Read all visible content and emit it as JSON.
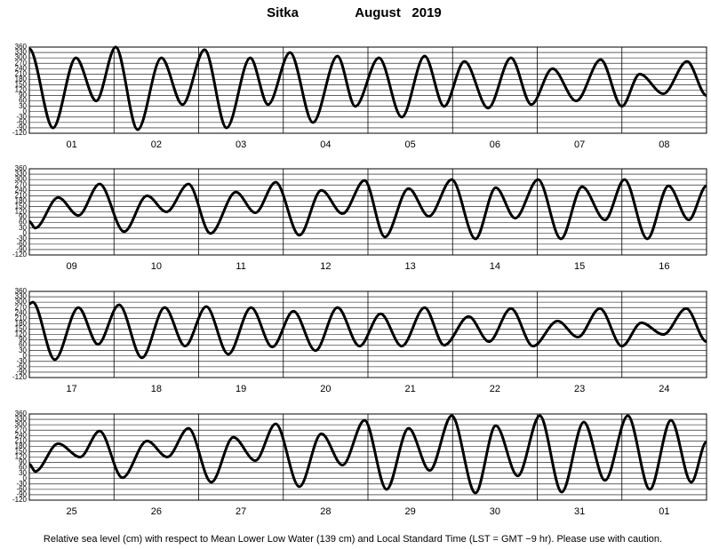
{
  "title": "Sitka",
  "date": "August   2019",
  "caption": "Relative sea level (cm) with respect to Mean Lower Low Water (139 cm) and Local Standard Time (LST = GMT −9 hr). Please use with caution.",
  "chart_data": [
    {
      "type": "line",
      "xlim": [
        0,
        8
      ],
      "ylim": [
        -120,
        360
      ],
      "grid": true,
      "color": "#000000",
      "yticks": [
        -120,
        -90,
        -60,
        -30,
        0,
        30,
        60,
        90,
        120,
        150,
        180,
        210,
        240,
        270,
        300,
        330,
        360
      ],
      "xticks": [
        {
          "value": 0.5,
          "label": "01"
        },
        {
          "value": 1.5,
          "label": "02"
        },
        {
          "value": 2.5,
          "label": "03"
        },
        {
          "value": 3.5,
          "label": "04"
        },
        {
          "value": 4.5,
          "label": "05"
        },
        {
          "value": 5.5,
          "label": "06"
        },
        {
          "value": 6.5,
          "label": "07"
        },
        {
          "value": 7.5,
          "label": "08"
        }
      ],
      "x": [
        0,
        0.28,
        0.55,
        0.79,
        1.02,
        1.28,
        1.56,
        1.81,
        2.07,
        2.33,
        2.61,
        2.82,
        3.08,
        3.35,
        3.64,
        3.85,
        4.13,
        4.4,
        4.67,
        4.9,
        5.14,
        5.42,
        5.69,
        5.93,
        6.18,
        6.46,
        6.75,
        7.0,
        7.21,
        7.49,
        7.77,
        8.0
      ],
      "values": [
        350,
        -90,
        300,
        60,
        360,
        -100,
        300,
        40,
        345,
        -90,
        300,
        40,
        330,
        -60,
        310,
        30,
        300,
        -30,
        310,
        30,
        280,
        20,
        300,
        40,
        240,
        60,
        290,
        30,
        210,
        100,
        280,
        90
      ]
    },
    {
      "type": "line",
      "xlim": [
        0,
        8
      ],
      "ylim": [
        -120,
        360
      ],
      "grid": true,
      "color": "#000000",
      "yticks": [
        -120,
        -90,
        -60,
        -30,
        0,
        30,
        60,
        90,
        120,
        150,
        180,
        210,
        240,
        270,
        300,
        330,
        360
      ],
      "xticks": [
        {
          "value": 0.5,
          "label": "09"
        },
        {
          "value": 1.5,
          "label": "10"
        },
        {
          "value": 2.5,
          "label": "11"
        },
        {
          "value": 3.5,
          "label": "12"
        },
        {
          "value": 4.5,
          "label": "13"
        },
        {
          "value": 5.5,
          "label": "14"
        },
        {
          "value": 6.5,
          "label": "15"
        },
        {
          "value": 7.5,
          "label": "16"
        }
      ],
      "x": [
        0,
        0.07,
        0.34,
        0.58,
        0.83,
        1.12,
        1.39,
        1.62,
        1.88,
        2.14,
        2.44,
        2.67,
        2.91,
        3.19,
        3.45,
        3.7,
        3.96,
        4.2,
        4.48,
        4.72,
        4.99,
        5.27,
        5.51,
        5.74,
        6.01,
        6.28,
        6.53,
        6.8,
        7.03,
        7.3,
        7.55,
        7.79,
        8.0
      ],
      "values": [
        66,
        30,
        200,
        100,
        275,
        10,
        210,
        120,
        275,
        0,
        230,
        115,
        285,
        -10,
        240,
        110,
        295,
        -20,
        250,
        95,
        300,
        -30,
        255,
        85,
        300,
        -30,
        260,
        75,
        300,
        -30,
        265,
        75,
        265
      ]
    },
    {
      "type": "line",
      "xlim": [
        0,
        8
      ],
      "ylim": [
        -120,
        360
      ],
      "grid": true,
      "color": "#000000",
      "yticks": [
        -120,
        -90,
        -60,
        -30,
        0,
        30,
        60,
        90,
        120,
        150,
        180,
        210,
        240,
        270,
        300,
        330,
        360
      ],
      "xticks": [
        {
          "value": 0.5,
          "label": "17"
        },
        {
          "value": 1.5,
          "label": "18"
        },
        {
          "value": 2.5,
          "label": "19"
        },
        {
          "value": 3.5,
          "label": "20"
        },
        {
          "value": 4.5,
          "label": "21"
        },
        {
          "value": 5.5,
          "label": "22"
        },
        {
          "value": 6.5,
          "label": "23"
        },
        {
          "value": 7.5,
          "label": "24"
        }
      ],
      "x": [
        0,
        0.04,
        0.3,
        0.58,
        0.81,
        1.06,
        1.33,
        1.6,
        1.84,
        2.09,
        2.35,
        2.62,
        2.87,
        3.12,
        3.38,
        3.64,
        3.9,
        4.15,
        4.4,
        4.67,
        4.9,
        5.19,
        5.43,
        5.69,
        5.95,
        6.24,
        6.48,
        6.74,
        7.0,
        7.23,
        7.49,
        7.76,
        8.0
      ],
      "values": [
        290,
        300,
        -20,
        270,
        65,
        285,
        -10,
        270,
        55,
        275,
        10,
        270,
        50,
        250,
        30,
        270,
        55,
        235,
        55,
        270,
        60,
        220,
        80,
        265,
        55,
        195,
        105,
        265,
        55,
        185,
        120,
        265,
        80
      ]
    },
    {
      "type": "line",
      "xlim": [
        0,
        8
      ],
      "ylim": [
        -120,
        360
      ],
      "grid": true,
      "color": "#000000",
      "yticks": [
        -120,
        -90,
        -60,
        -30,
        0,
        30,
        60,
        90,
        120,
        150,
        180,
        210,
        240,
        270,
        300,
        330,
        360
      ],
      "xticks": [
        {
          "value": 0.5,
          "label": "25"
        },
        {
          "value": 1.5,
          "label": "26"
        },
        {
          "value": 2.5,
          "label": "27"
        },
        {
          "value": 3.5,
          "label": "28"
        },
        {
          "value": 4.5,
          "label": "29"
        },
        {
          "value": 5.5,
          "label": "30"
        },
        {
          "value": 6.5,
          "label": "31"
        },
        {
          "value": 7.5,
          "label": "01"
        }
      ],
      "x": [
        0,
        0.07,
        0.34,
        0.6,
        0.83,
        1.1,
        1.39,
        1.63,
        1.88,
        2.15,
        2.41,
        2.67,
        2.91,
        3.19,
        3.45,
        3.7,
        3.96,
        4.22,
        4.48,
        4.73,
        4.99,
        5.27,
        5.51,
        5.77,
        6.03,
        6.29,
        6.55,
        6.8,
        7.07,
        7.33,
        7.58,
        7.82,
        8.0
      ],
      "values": [
        80,
        40,
        195,
        120,
        265,
        5,
        210,
        120,
        280,
        -20,
        230,
        100,
        305,
        -45,
        250,
        75,
        325,
        -60,
        280,
        45,
        350,
        -80,
        295,
        15,
        350,
        -75,
        315,
        -10,
        350,
        -60,
        325,
        -20,
        205
      ]
    }
  ]
}
